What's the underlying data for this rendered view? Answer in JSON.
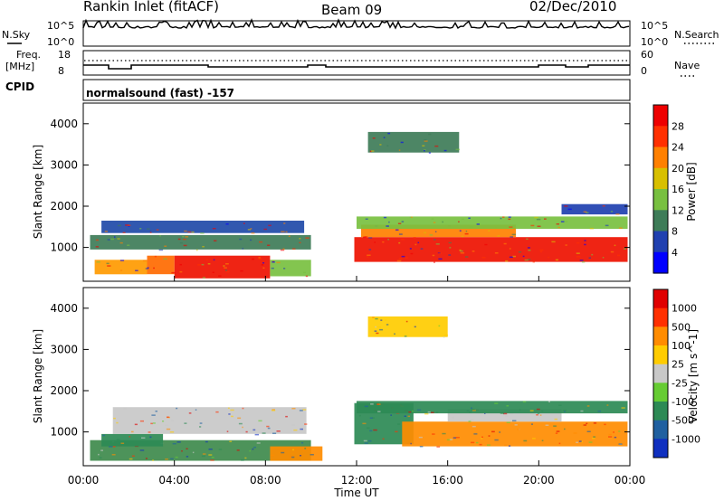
{
  "header": {
    "title": "Rankin Inlet (fitACF)",
    "beam": "Beam 09",
    "date": "02/Dec/2010"
  },
  "top_panels": {
    "nsky_label": "N.Sky",
    "nsky_ticks": [
      "10^5",
      "10^0"
    ],
    "nsearch_label": "N.Search",
    "nsearch_ticks": [
      "10^5",
      "10^0"
    ],
    "freq_label_1": "Freq.",
    "freq_label_2": "[MHz]",
    "freq_ticks": [
      "18",
      "8"
    ],
    "nave_label": "Nave",
    "nave_ticks": [
      "60",
      "0"
    ],
    "cpid_label": "CPID",
    "cpid_text": "normalsound (fast) -157"
  },
  "chart_data": [
    {
      "type": "heatmap",
      "name": "power",
      "ylabel": "Slant Range [km]",
      "yticks": [
        "4000",
        "3000",
        "2000",
        "1000"
      ],
      "ytick_values": [
        4000,
        3000,
        2000,
        1000
      ],
      "ylim": [
        180,
        4500
      ],
      "xlim": [
        0,
        24
      ],
      "colorbar_label": "Power [dB]",
      "colorbar_ticks": [
        "28",
        "24",
        "20",
        "16",
        "12",
        "8",
        "4"
      ],
      "colors": [
        "#0000ff",
        "#2040b0",
        "#3e7c58",
        "#78c040",
        "#d8c000",
        "#ff8000",
        "#ff3000",
        "#ee0000"
      ],
      "regions": [
        {
          "t0": 4.0,
          "t1": 8.2,
          "r0": 250,
          "r1": 800,
          "color": "#ee1100"
        },
        {
          "t0": 2.8,
          "t1": 4.0,
          "r0": 350,
          "r1": 800,
          "color": "#ff6a00"
        },
        {
          "t0": 0.5,
          "t1": 2.8,
          "r0": 350,
          "r1": 700,
          "color": "#ff9a00"
        },
        {
          "t0": 0.3,
          "t1": 10.0,
          "r0": 950,
          "r1": 1300,
          "color": "#3e7c58"
        },
        {
          "t0": 0.8,
          "t1": 9.7,
          "r0": 1350,
          "r1": 1650,
          "color": "#1f4aa8"
        },
        {
          "t0": 8.2,
          "t1": 10.0,
          "r0": 300,
          "r1": 700,
          "color": "#78c040"
        },
        {
          "t0": 11.9,
          "t1": 23.9,
          "r0": 650,
          "r1": 1250,
          "color": "#ee1100"
        },
        {
          "t0": 12.2,
          "t1": 19.0,
          "r0": 1250,
          "r1": 1550,
          "color": "#ff8000"
        },
        {
          "t0": 12.0,
          "t1": 23.9,
          "r0": 1450,
          "r1": 1750,
          "color": "#78c040"
        },
        {
          "t0": 12.5,
          "t1": 16.5,
          "r0": 3300,
          "r1": 3800,
          "color": "#3e7c58"
        },
        {
          "t0": 21.0,
          "t1": 23.9,
          "r0": 1800,
          "r1": 2050,
          "color": "#2040b0"
        }
      ]
    },
    {
      "type": "heatmap",
      "name": "velocity",
      "ylabel": "Slant Range [km]",
      "yticks": [
        "4000",
        "3000",
        "2000",
        "1000"
      ],
      "ytick_values": [
        4000,
        3000,
        2000,
        1000
      ],
      "ylim": [
        180,
        4500
      ],
      "xlim": [
        0,
        24
      ],
      "xlabel": "Time UT",
      "xticks": [
        "00:00",
        "04:00",
        "08:00",
        "12:00",
        "16:00",
        "20:00",
        "00:00"
      ],
      "xtick_values": [
        0,
        4,
        8,
        12,
        16,
        20,
        24
      ],
      "colorbar_label": "Velocity [m s^-1]",
      "colorbar_ticks": [
        "1000",
        "500",
        "100",
        "25",
        "-25",
        "-100",
        "-500",
        "-1000"
      ],
      "colors": [
        "#1030c0",
        "#2060a0",
        "#2d8a55",
        "#66cc33",
        "#c8c8c8",
        "#ffcc00",
        "#ff8c00",
        "#ff3000",
        "#e00000"
      ],
      "regions": [
        {
          "t0": 0.3,
          "t1": 10.0,
          "r0": 300,
          "r1": 800,
          "color": "#3e8a4c"
        },
        {
          "t0": 1.3,
          "t1": 9.8,
          "r0": 950,
          "r1": 1600,
          "color": "#c8c8c8"
        },
        {
          "t0": 0.8,
          "t1": 3.5,
          "r0": 650,
          "r1": 950,
          "color": "#2d8a55"
        },
        {
          "t0": 8.2,
          "t1": 10.5,
          "r0": 300,
          "r1": 650,
          "color": "#ff8c00"
        },
        {
          "t0": 11.9,
          "t1": 14.5,
          "r0": 700,
          "r1": 1700,
          "color": "#2d8a55"
        },
        {
          "t0": 14.0,
          "t1": 23.9,
          "r0": 650,
          "r1": 1250,
          "color": "#ff8c00"
        },
        {
          "t0": 16.0,
          "t1": 21.0,
          "r0": 1250,
          "r1": 1550,
          "color": "#c8c8c8"
        },
        {
          "t0": 12.0,
          "t1": 23.9,
          "r0": 1450,
          "r1": 1750,
          "color": "#2d8a55"
        },
        {
          "t0": 12.5,
          "t1": 16.0,
          "r0": 3300,
          "r1": 3800,
          "color": "#ffcc00"
        }
      ]
    }
  ]
}
